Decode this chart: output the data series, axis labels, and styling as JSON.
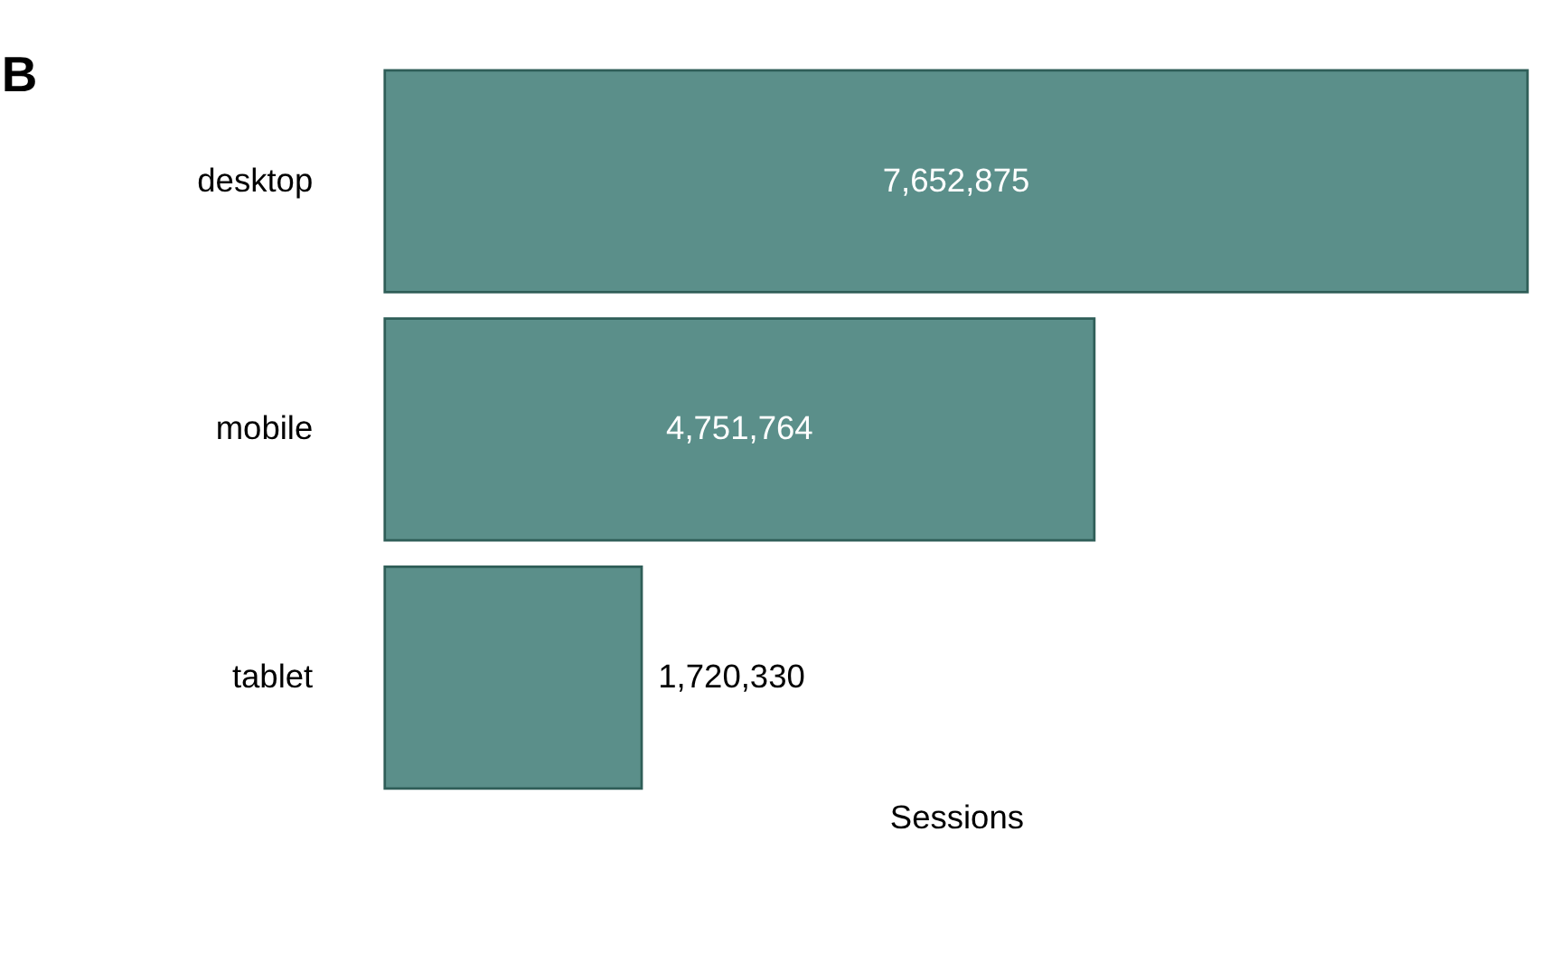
{
  "chart_data": {
    "type": "bar",
    "orientation": "horizontal",
    "title": "B",
    "xlabel": "Sessions",
    "categories": [
      "desktop",
      "mobile",
      "tablet"
    ],
    "values": [
      7652875,
      4751764,
      1720330
    ],
    "value_labels": [
      "7,652,875",
      "4,751,764",
      "1,720,330"
    ],
    "color": "#5b8f8a",
    "grid": false
  }
}
